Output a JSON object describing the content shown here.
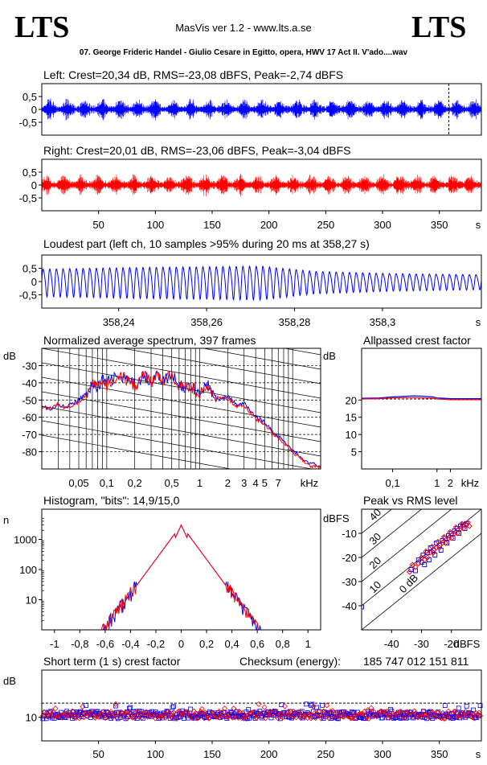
{
  "header": {
    "logo_left": "LTS",
    "logo_right": "LTS",
    "app_title": "MasVis ver 1.2 - www.lts.a.se",
    "file_title": "07. George Frideric Handel - Giulio Cesare in Egitto, opera, HWV 17 Act II. V'ado....wav"
  },
  "colors": {
    "left": "#0000ff",
    "right": "#ff0000",
    "frame": "#000000",
    "background": "#ffffff"
  },
  "chart_data": [
    {
      "id": "left-waveform",
      "type": "line",
      "title": "Left: Crest=20,34 dB, RMS=-23,08 dBFS, Peak=-2,74 dBFS",
      "ylim": [
        -1,
        1
      ],
      "yticks": [
        {
          "v": 0.5,
          "label": "0,5"
        },
        {
          "v": 0,
          "label": "0"
        },
        {
          "v": -0.5,
          "label": "-0,5"
        }
      ],
      "xlim": [
        0,
        387
      ],
      "marker_x": 358.27,
      "color": "#0000ff",
      "envelope_peak_approx": 0.35
    },
    {
      "id": "right-waveform",
      "type": "line",
      "title": "Right: Crest=20,01 dB, RMS=-23,06 dBFS, Peak=-3,04 dBFS",
      "ylim": [
        -1,
        1
      ],
      "yticks": [
        {
          "v": 0.5,
          "label": "0,5"
        },
        {
          "v": 0,
          "label": "0"
        },
        {
          "v": -0.5,
          "label": "-0,5"
        }
      ],
      "xlim": [
        0,
        387
      ],
      "xticks": [
        {
          "v": 50,
          "label": "50"
        },
        {
          "v": 100,
          "label": "100"
        },
        {
          "v": 150,
          "label": "150"
        },
        {
          "v": 200,
          "label": "200"
        },
        {
          "v": 250,
          "label": "250"
        },
        {
          "v": 300,
          "label": "300"
        },
        {
          "v": 350,
          "label": "350"
        }
      ],
      "xunit": "s",
      "color": "#ff0000"
    },
    {
      "id": "loudest-part",
      "type": "line",
      "title": "Loudest part (left  ch, 10 samples >95% during 20 ms at 358,27 s)",
      "xlim": [
        358.2225,
        358.3225
      ],
      "ylim": [
        -1,
        1
      ],
      "yticks": [
        {
          "v": 0.5,
          "label": "0,5"
        },
        {
          "v": 0,
          "label": "0"
        },
        {
          "v": -0.5,
          "label": "-0,5"
        }
      ],
      "xticks": [
        {
          "v": 358.24,
          "label": "358,24"
        },
        {
          "v": 358.26,
          "label": "358,26"
        },
        {
          "v": 358.28,
          "label": "358,28"
        },
        {
          "v": 358.3,
          "label": "358,3"
        }
      ],
      "xunit": "s",
      "color": "#0000ff",
      "cycles": 66,
      "amplitude_profile": [
        [
          0,
          0.55
        ],
        [
          0.2,
          0.62
        ],
        [
          0.5,
          0.68
        ],
        [
          0.62,
          0.45
        ],
        [
          0.8,
          0.35
        ],
        [
          1,
          0.3
        ]
      ]
    },
    {
      "id": "spectrum",
      "type": "line",
      "title": "Normalized average spectrum, 397 frames",
      "ylabel": "dB",
      "xunit": "kHz",
      "xscale": "log",
      "xlim": [
        0.02,
        20
      ],
      "ylim": [
        -90,
        -20
      ],
      "yticks": [
        {
          "v": -30,
          "label": "-30"
        },
        {
          "v": -40,
          "label": "-40"
        },
        {
          "v": -50,
          "label": "-50"
        },
        {
          "v": -60,
          "label": "-60"
        },
        {
          "v": -70,
          "label": "-70"
        },
        {
          "v": -80,
          "label": "-80"
        }
      ],
      "xticks": [
        {
          "v": 0.05,
          "label": "0,05"
        },
        {
          "v": 0.1,
          "label": "0,1"
        },
        {
          "v": 0.2,
          "label": "0,2"
        },
        {
          "v": 0.5,
          "label": "0,5"
        },
        {
          "v": 1,
          "label": "1"
        },
        {
          "v": 2,
          "label": "2"
        },
        {
          "v": 3,
          "label": "3"
        },
        {
          "v": 4,
          "label": "4"
        },
        {
          "v": 5,
          "label": "5"
        },
        {
          "v": 7,
          "label": "7"
        }
      ],
      "series": [
        {
          "color": "#0000ff",
          "x": [
            0.02,
            0.025,
            0.03,
            0.035,
            0.04,
            0.05,
            0.06,
            0.07,
            0.08,
            0.09,
            0.1,
            0.12,
            0.15,
            0.2,
            0.25,
            0.3,
            0.35,
            0.4,
            0.5,
            0.6,
            0.7,
            0.8,
            1,
            1.2,
            1.5,
            2,
            2.5,
            3,
            3.5,
            4,
            5,
            6,
            7,
            8,
            10,
            12,
            15,
            20
          ],
          "y": [
            -53,
            -56,
            -53,
            -54,
            -53,
            -50,
            -46,
            -40,
            -43,
            -38,
            -40,
            -37,
            -38,
            -41,
            -36,
            -39,
            -35,
            -39,
            -36,
            -40,
            -44,
            -41,
            -46,
            -41,
            -50,
            -48,
            -53,
            -52,
            -56,
            -60,
            -63,
            -68,
            -71,
            -74,
            -79,
            -83,
            -87,
            -88
          ]
        },
        {
          "color": "#ff0000",
          "x": [
            0.02,
            0.025,
            0.03,
            0.035,
            0.04,
            0.05,
            0.06,
            0.07,
            0.08,
            0.09,
            0.1,
            0.12,
            0.15,
            0.2,
            0.25,
            0.3,
            0.35,
            0.4,
            0.5,
            0.6,
            0.7,
            0.8,
            1,
            1.2,
            1.5,
            2,
            2.5,
            3,
            3.5,
            4,
            5,
            6,
            7,
            8,
            10,
            12,
            15,
            20
          ],
          "y": [
            -54,
            -55,
            -52,
            -55,
            -54,
            -51,
            -47,
            -42,
            -41,
            -40,
            -42,
            -38,
            -37,
            -42,
            -35,
            -40,
            -36,
            -40,
            -35,
            -41,
            -43,
            -42,
            -47,
            -42,
            -49,
            -49,
            -54,
            -53,
            -57,
            -61,
            -64,
            -69,
            -72,
            -75,
            -80,
            -84,
            -88,
            -89
          ]
        }
      ]
    },
    {
      "id": "allpass-crest",
      "type": "line",
      "title": "Allpassed crest factor",
      "ylabel": "dB",
      "xunit": "kHz",
      "xscale": "log",
      "xlim": [
        0.02,
        10
      ],
      "ylim": [
        0,
        35
      ],
      "yticks": [
        {
          "v": 5,
          "label": "5"
        },
        {
          "v": 10,
          "label": "10"
        },
        {
          "v": 15,
          "label": "15"
        },
        {
          "v": 20,
          "label": "20"
        }
      ],
      "xticks": [
        {
          "v": 0.1,
          "label": "0,1"
        },
        {
          "v": 1,
          "label": "1"
        },
        {
          "v": 2,
          "label": "2"
        }
      ],
      "reference": 20.3,
      "series": [
        {
          "color": "#0000ff",
          "x": [
            0.02,
            0.05,
            0.1,
            0.2,
            0.3,
            0.5,
            0.8,
            1,
            1.5,
            2,
            5,
            10
          ],
          "y": [
            20.5,
            20.6,
            20.9,
            21.1,
            21.2,
            21.1,
            20.9,
            20.6,
            20.5,
            20.4,
            20.4,
            20.4
          ]
        },
        {
          "color": "#ff0000",
          "x": [
            0.02,
            0.05,
            0.1,
            0.2,
            0.3,
            0.5,
            0.8,
            1,
            1.5,
            2,
            5,
            10
          ],
          "y": [
            20.3,
            20.4,
            20.6,
            20.7,
            20.7,
            20.6,
            20.5,
            20.3,
            20.2,
            20.1,
            20.1,
            20.1
          ]
        }
      ]
    },
    {
      "id": "histogram",
      "type": "line",
      "title": "Histogram, \"bits\": 14,9/15,0",
      "ylabel": "n",
      "yscale": "log",
      "xlim": [
        -1.1,
        1.1
      ],
      "ylim": [
        1,
        10000
      ],
      "yticks": [
        {
          "v": 10,
          "label": "10"
        },
        {
          "v": 100,
          "label": "100"
        },
        {
          "v": 1000,
          "label": "1000"
        }
      ],
      "xticks": [
        {
          "v": -1,
          "label": "-1"
        },
        {
          "v": -0.8,
          "label": "-0,8"
        },
        {
          "v": -0.6,
          "label": "-0,6"
        },
        {
          "v": -0.4,
          "label": "-0,4"
        },
        {
          "v": -0.2,
          "label": "-0,2"
        },
        {
          "v": 0,
          "label": "0"
        },
        {
          "v": 0.2,
          "label": "0,2"
        },
        {
          "v": 0.4,
          "label": "0,4"
        },
        {
          "v": 0.6,
          "label": "0,6"
        },
        {
          "v": 0.8,
          "label": "0,8"
        },
        {
          "v": 1,
          "label": "1"
        }
      ],
      "peak_count": 3000,
      "decay_per_unit": 5.7,
      "span": [
        -0.72,
        0.72
      ],
      "series_colors": [
        "#0000ff",
        "#ff0000"
      ]
    },
    {
      "id": "peak-vs-rms",
      "type": "scatter",
      "title": "Peak vs RMS level",
      "ylabel": "dBFS",
      "xunit": "dBFS",
      "xlim": [
        -50,
        -10
      ],
      "ylim": [
        -50,
        0
      ],
      "yticks": [
        {
          "v": -10,
          "label": "-10"
        },
        {
          "v": -20,
          "label": "-20"
        },
        {
          "v": -30,
          "label": "-30"
        },
        {
          "v": -40,
          "label": "-40"
        }
      ],
      "xticks": [
        {
          "v": -40,
          "label": "-40"
        },
        {
          "v": -30,
          "label": "-30"
        },
        {
          "v": -20,
          "label": "-20"
        }
      ],
      "diagonals": [
        {
          "offset": 0,
          "label": "0 dB"
        },
        {
          "offset": 10,
          "label": "10"
        },
        {
          "offset": 20,
          "label": "20"
        },
        {
          "offset": 30,
          "label": "30"
        },
        {
          "offset": 40,
          "label": "40"
        }
      ],
      "points_left": [
        [
          -50,
          -40.5
        ],
        [
          -33.5,
          -25
        ],
        [
          -32,
          -25.5
        ],
        [
          -31,
          -21
        ],
        [
          -30,
          -22
        ],
        [
          -29.5,
          -19
        ],
        [
          -29,
          -23
        ],
        [
          -28,
          -18
        ],
        [
          -27.5,
          -21
        ],
        [
          -27,
          -16
        ],
        [
          -26,
          -17
        ],
        [
          -25.5,
          -19
        ],
        [
          -25,
          -14
        ],
        [
          -24,
          -15
        ],
        [
          -23.5,
          -17
        ],
        [
          -23,
          -13
        ],
        [
          -22,
          -12
        ],
        [
          -21.5,
          -14
        ],
        [
          -21,
          -11
        ],
        [
          -20,
          -10
        ],
        [
          -19.5,
          -12
        ],
        [
          -19,
          -9
        ],
        [
          -18,
          -8
        ],
        [
          -17.5,
          -10
        ],
        [
          -17,
          -7
        ],
        [
          -16,
          -6.5
        ],
        [
          -15.5,
          -8
        ],
        [
          -15,
          -6
        ]
      ],
      "points_right": [
        [
          -34,
          -26
        ],
        [
          -33,
          -23
        ],
        [
          -32,
          -24
        ],
        [
          -31,
          -22.5
        ],
        [
          -30,
          -20
        ],
        [
          -29,
          -21
        ],
        [
          -28.5,
          -17.5
        ],
        [
          -28,
          -20
        ],
        [
          -27,
          -18
        ],
        [
          -26.5,
          -15.5
        ],
        [
          -26,
          -18
        ],
        [
          -25,
          -16
        ],
        [
          -24.5,
          -13.5
        ],
        [
          -24,
          -16
        ],
        [
          -23,
          -14
        ],
        [
          -22.5,
          -11.5
        ],
        [
          -22,
          -14
        ],
        [
          -21,
          -12
        ],
        [
          -20.5,
          -9.5
        ],
        [
          -20,
          -12
        ],
        [
          -19,
          -10
        ],
        [
          -18.5,
          -7.5
        ],
        [
          -18,
          -10
        ],
        [
          -17,
          -8
        ],
        [
          -16.5,
          -6
        ],
        [
          -16,
          -8
        ],
        [
          -15,
          -6.5
        ],
        [
          -14.5,
          -5.5
        ],
        [
          -14,
          -7
        ]
      ]
    },
    {
      "id": "short-term-crest",
      "type": "scatter",
      "title": "Short term (1 s) crest factor",
      "ylabel": "dB",
      "xlim": [
        0,
        387
      ],
      "ylim": [
        5,
        20
      ],
      "reference": 13,
      "yticks": [
        {
          "v": 10,
          "label": "10"
        }
      ],
      "xticks": [
        {
          "v": 50,
          "label": "50"
        },
        {
          "v": 100,
          "label": "100"
        },
        {
          "v": 150,
          "label": "150"
        },
        {
          "v": 200,
          "label": "200"
        },
        {
          "v": 250,
          "label": "250"
        },
        {
          "v": 300,
          "label": "300"
        },
        {
          "v": 350,
          "label": "350"
        }
      ],
      "xunit": "s",
      "checksum_label": "Checksum (energy):",
      "checksum_value": "185 747 012 151 811",
      "base_level": 10.5,
      "spread": 1.6
    }
  ]
}
